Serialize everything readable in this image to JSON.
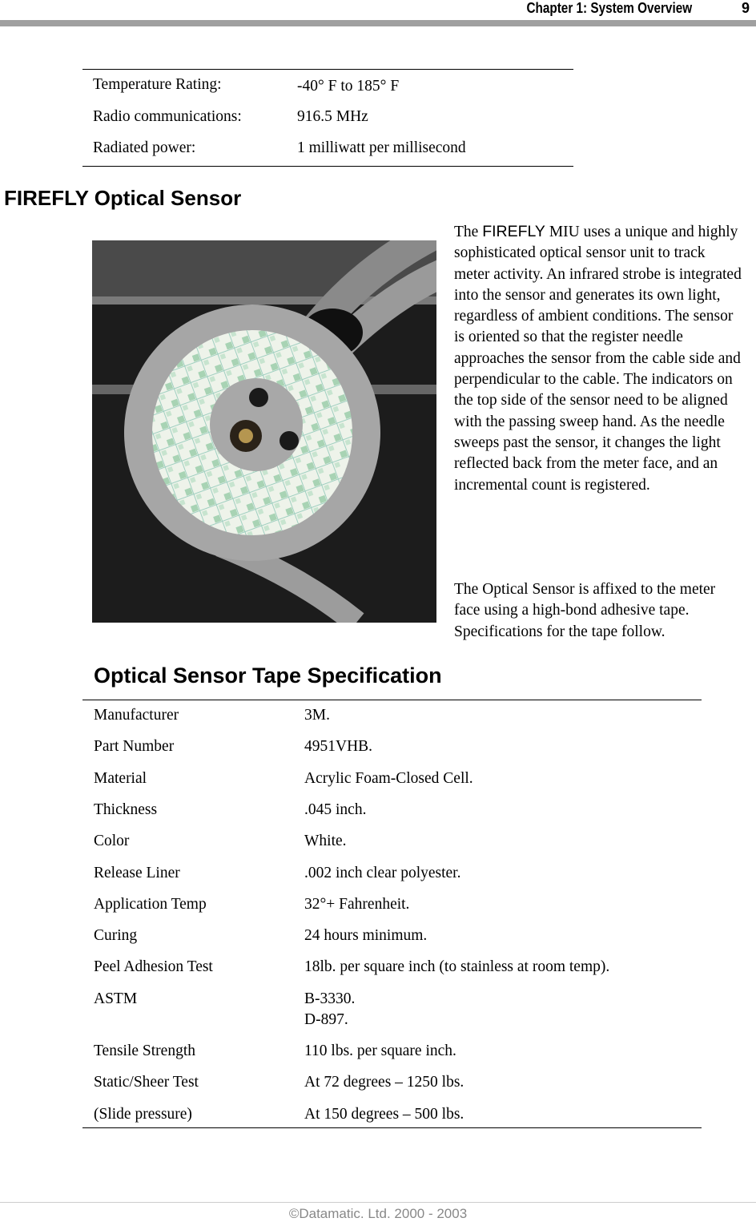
{
  "header": {
    "chapter": "Chapter 1:  System Overview",
    "page": "9"
  },
  "specs_table": {
    "rows": [
      [
        "Temperature Rating:",
        "-40° F to 185° F"
      ],
      [
        "Radio communications:",
        "916.5 MHz"
      ],
      [
        "Radiated power:",
        "1 milliwatt per millisecond"
      ]
    ]
  },
  "section": {
    "title": "FIREFLY Optical Sensor",
    "paragraphs": [
      [
        "The ",
        "FIREFLY",
        " MIU uses a unique and highly sophisticated optical sensor unit to track meter activity. An infrared strobe is integrated into the sensor and generates its own light, regardless of ambient conditions. The sensor is oriented so that the register needle approaches the sensor from the cable side and perpendicular to the cable. The indicators on the top side of the sensor need to be aligned with the passing sweep hand. As the needle sweeps past the sensor, it changes the light reflected back from the meter face, and an incremental count is registered."
      ],
      [
        "The Optical Sensor is affixed to the meter face using a high-bond adhesive tape. Specifications for the tape follow."
      ]
    ]
  },
  "tape_spec": {
    "title": "Optical Sensor Tape Specification",
    "rows": [
      [
        "Manufacturer",
        [
          "3M."
        ]
      ],
      [
        "Part Number",
        [
          "4951VHB."
        ]
      ],
      [
        "Material",
        [
          "Acrylic Foam-Closed Cell."
        ]
      ],
      [
        "Thickness",
        [
          ".045 inch."
        ]
      ],
      [
        "Color",
        [
          "White."
        ]
      ],
      [
        "Release Liner",
        [
          ".002 inch clear polyester."
        ]
      ],
      [
        "Application Temp",
        [
          "32°+ Fahrenheit."
        ]
      ],
      [
        "Curing",
        [
          "24 hours minimum."
        ]
      ],
      [
        "Peel Adhesion Test",
        [
          "18lb. per square inch (to stainless at room temp)."
        ]
      ],
      [
        "ASTM",
        [
          "B-3330.",
          "D-897."
        ]
      ],
      [
        "Tensile Strength",
        [
          "110 lbs. per square inch."
        ]
      ],
      [
        "Static/Sheer Test",
        [
          "At 72 degrees – 1250 lbs."
        ]
      ],
      [
        "(Slide pressure)",
        [
          "At 150 degrees – 500 lbs."
        ]
      ]
    ]
  },
  "footer": {
    "copyright": "©Datamatic. Ltd. 2000 - 2003"
  }
}
